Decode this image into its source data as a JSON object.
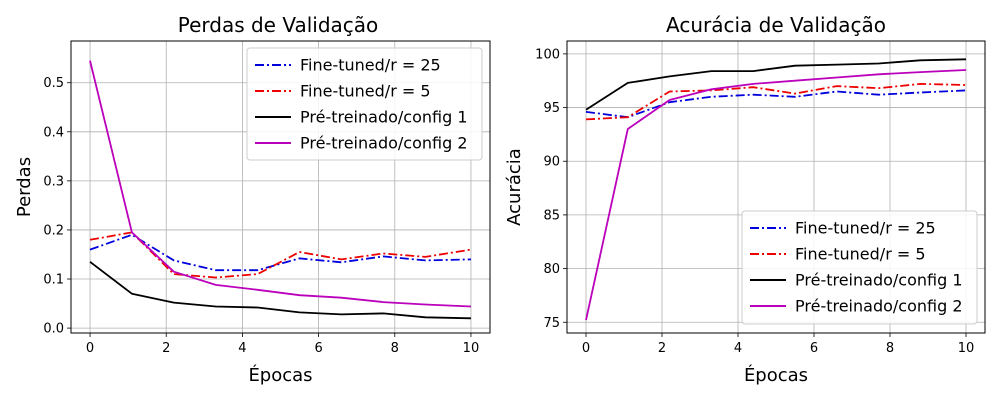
{
  "chart_data": [
    {
      "type": "line",
      "title": "Perdas de Validação",
      "xlabel": "Épocas",
      "ylabel": "Perdas",
      "xlim": [
        -0.5,
        10.5
      ],
      "ylim": [
        -0.01,
        0.585
      ],
      "xticks": [
        0,
        2,
        4,
        6,
        8,
        10
      ],
      "xtick_labels": [
        "0",
        "2",
        "4",
        "6",
        "8",
        "10"
      ],
      "yticks": [
        0.0,
        0.1,
        0.2,
        0.3,
        0.4,
        0.5
      ],
      "ytick_labels": [
        "0.0",
        "0.1",
        "0.2",
        "0.3",
        "0.4",
        "0.5"
      ],
      "grid": true,
      "legend_position": "top-right",
      "x": [
        0,
        1.1,
        2.2,
        3.3,
        4.4,
        5.5,
        6.6,
        7.7,
        8.8,
        10
      ],
      "series": [
        {
          "name": "Fine-tuned/r = 25",
          "color": "#0000dd",
          "style": "dashdot",
          "values": [
            0.16,
            0.19,
            0.138,
            0.118,
            0.118,
            0.142,
            0.134,
            0.146,
            0.138,
            0.14
          ]
        },
        {
          "name": "Fine-tuned/r = 5",
          "color": "#ee0000",
          "style": "dashdot",
          "values": [
            0.18,
            0.195,
            0.11,
            0.103,
            0.11,
            0.155,
            0.14,
            0.152,
            0.145,
            0.16
          ]
        },
        {
          "name": "Pré-treinado/config 1",
          "color": "#000000",
          "style": "solid",
          "values": [
            0.135,
            0.07,
            0.052,
            0.044,
            0.042,
            0.032,
            0.028,
            0.03,
            0.022,
            0.02
          ]
        },
        {
          "name": "Pré-treinado/config 2",
          "color": "#bb00bb",
          "style": "solid",
          "values": [
            0.545,
            0.195,
            0.115,
            0.088,
            0.078,
            0.067,
            0.062,
            0.053,
            0.048,
            0.044
          ]
        }
      ]
    },
    {
      "type": "line",
      "title": "Acurácia de Validação",
      "xlabel": "Épocas",
      "ylabel": "Acurácia",
      "xlim": [
        -0.5,
        10.5
      ],
      "ylim": [
        74,
        101.2
      ],
      "xticks": [
        0,
        2,
        4,
        6,
        8,
        10
      ],
      "xtick_labels": [
        "0",
        "2",
        "4",
        "6",
        "8",
        "10"
      ],
      "yticks": [
        75,
        80,
        85,
        90,
        95,
        100
      ],
      "ytick_labels": [
        "75",
        "80",
        "85",
        "90",
        "95",
        "100"
      ],
      "grid": true,
      "legend_position": "bottom-right",
      "x": [
        0,
        1.1,
        2.2,
        3.3,
        4.4,
        5.5,
        6.6,
        7.7,
        8.8,
        10
      ],
      "series": [
        {
          "name": "Fine-tuned/r = 25",
          "color": "#0000dd",
          "style": "dashdot",
          "values": [
            94.6,
            94.1,
            95.5,
            96.0,
            96.2,
            96.0,
            96.5,
            96.2,
            96.4,
            96.6
          ]
        },
        {
          "name": "Fine-tuned/r = 5",
          "color": "#ee0000",
          "style": "dashdot",
          "values": [
            93.9,
            94.1,
            96.5,
            96.6,
            96.9,
            96.3,
            97.0,
            96.8,
            97.2,
            97.1
          ]
        },
        {
          "name": "Pré-treinado/config 1",
          "color": "#000000",
          "style": "solid",
          "values": [
            94.8,
            97.3,
            97.9,
            98.4,
            98.4,
            98.9,
            99.0,
            99.1,
            99.4,
            99.5
          ]
        },
        {
          "name": "Pré-treinado/config 2",
          "color": "#bb00bb",
          "style": "solid",
          "values": [
            75.2,
            93.0,
            95.7,
            96.7,
            97.2,
            97.5,
            97.8,
            98.1,
            98.3,
            98.5
          ]
        }
      ]
    }
  ]
}
